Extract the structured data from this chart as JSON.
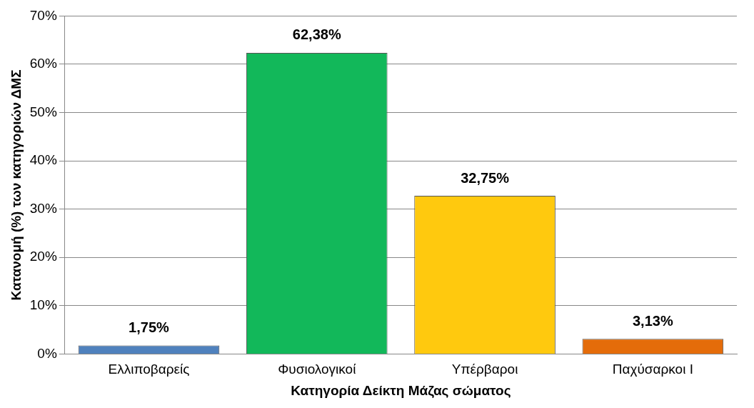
{
  "chart_data": {
    "type": "bar",
    "xlabel": "Κατηγορία Δείκτη Μάζας σώματος",
    "ylabel": "Κατανομή (%) των κατηγοριών ΔΜΣ",
    "categories": [
      "Ελλιποβαρείς",
      "Φυσιολογικοί",
      "Υπέρβαροι",
      "Παχύσαρκοι Ι"
    ],
    "values": [
      1.75,
      62.38,
      32.75,
      3.13
    ],
    "value_labels": [
      "1,75%",
      "62,38%",
      "32,75%",
      "3,13%"
    ],
    "colors": [
      "#4f81bd",
      "#12b85a",
      "#ffc90e",
      "#e46c0a"
    ],
    "ylim": [
      0,
      70
    ],
    "yticks": [
      {
        "value": 0,
        "label": "0%"
      },
      {
        "value": 10,
        "label": "10%"
      },
      {
        "value": 20,
        "label": "20%"
      },
      {
        "value": 30,
        "label": "30%"
      },
      {
        "value": 40,
        "label": "40%"
      },
      {
        "value": 50,
        "label": "50%"
      },
      {
        "value": 60,
        "label": "60%"
      },
      {
        "value": 70,
        "label": "70%"
      }
    ],
    "grid": "y"
  }
}
